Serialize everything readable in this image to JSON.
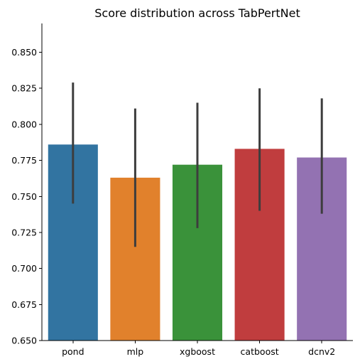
{
  "chart_data": {
    "type": "bar",
    "title": "Score distribution across TabPertNet",
    "xlabel": "",
    "ylabel": "",
    "categories": [
      "pond",
      "mlp",
      "xgboost",
      "catboost",
      "dcnv2"
    ],
    "values": [
      0.786,
      0.763,
      0.772,
      0.783,
      0.777
    ],
    "error_low": [
      0.745,
      0.715,
      0.728,
      0.74,
      0.738
    ],
    "error_high": [
      0.829,
      0.811,
      0.815,
      0.825,
      0.818
    ],
    "colors": [
      "#3274a1",
      "#e1812c",
      "#3a923a",
      "#c03d3e",
      "#9372b2"
    ],
    "ylim": [
      0.65,
      0.87
    ],
    "yticks": [
      0.65,
      0.675,
      0.7,
      0.725,
      0.75,
      0.775,
      0.8,
      0.825,
      0.85
    ],
    "ytick_labels": [
      "0.650",
      "0.675",
      "0.700",
      "0.725",
      "0.750",
      "0.775",
      "0.800",
      "0.825",
      "0.850"
    ],
    "grid": false,
    "legend": "none"
  }
}
